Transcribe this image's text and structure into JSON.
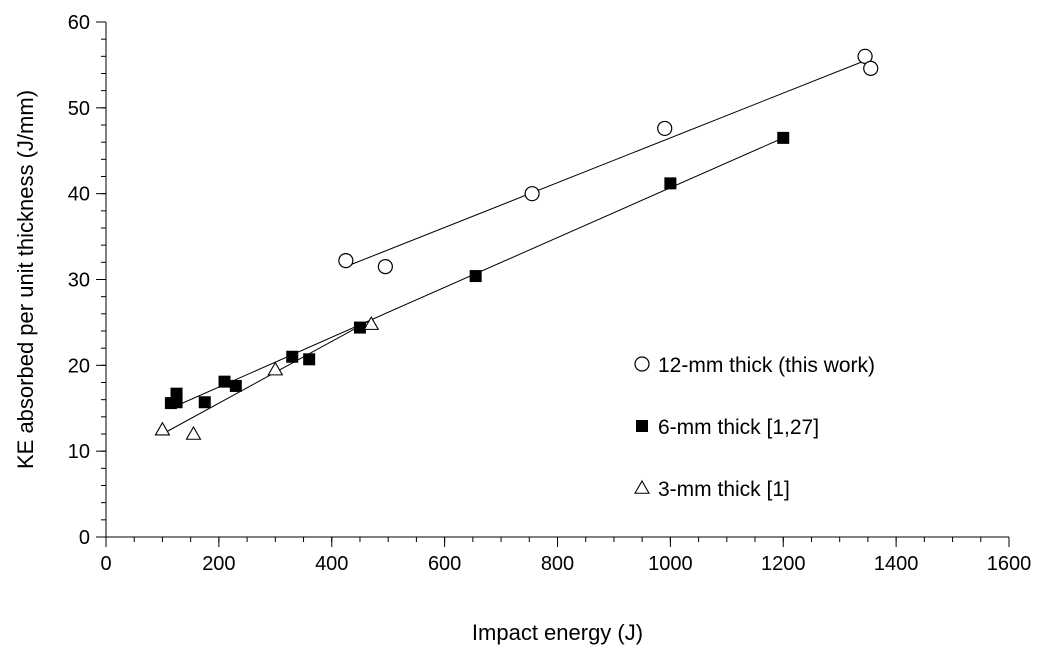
{
  "chart_data": {
    "type": "scatter",
    "xlabel": "Impact energy (J)",
    "ylabel": "KE absorbed per unit thickness (J/mm)",
    "xlim": [
      0,
      1600
    ],
    "ylim": [
      0,
      60
    ],
    "x_ticks": [
      "0",
      "200",
      "400",
      "600",
      "800",
      "1000",
      "1200",
      "1400",
      "1600"
    ],
    "y_ticks": [
      "0",
      "10",
      "20",
      "30",
      "40",
      "50",
      "60"
    ],
    "x_minor_step": 50,
    "y_minor_step": 2,
    "grid": false,
    "legend_position": "right",
    "series": [
      {
        "name": "12-mm thick (this work)",
        "marker": "circle-open",
        "color": "#000000",
        "points": [
          [
            425,
            32.2
          ],
          [
            495,
            31.5
          ],
          [
            755,
            40.0
          ],
          [
            990,
            47.6
          ],
          [
            1345,
            56.0
          ],
          [
            1355,
            54.6
          ]
        ],
        "fit_line": [
          [
            425,
            31.5
          ],
          [
            1345,
            55.5
          ]
        ]
      },
      {
        "name": "6-mm thick [1,27]",
        "marker": "square-filled",
        "color": "#000000",
        "points": [
          [
            115,
            15.6
          ],
          [
            125,
            16.7
          ],
          [
            125,
            15.7
          ],
          [
            175,
            15.7
          ],
          [
            210,
            18.1
          ],
          [
            230,
            17.6
          ],
          [
            330,
            21.0
          ],
          [
            360,
            20.7
          ],
          [
            450,
            24.4
          ],
          [
            655,
            30.4
          ],
          [
            1000,
            41.2
          ],
          [
            1200,
            46.5
          ]
        ],
        "fit_line": [
          [
            115,
            15.0
          ],
          [
            1200,
            46.5
          ]
        ]
      },
      {
        "name": "3-mm thick [1]",
        "marker": "triangle-open",
        "color": "#000000",
        "points": [
          [
            100,
            12.5
          ],
          [
            155,
            12.0
          ],
          [
            300,
            19.5
          ],
          [
            470,
            24.8
          ]
        ],
        "fit_line": [
          [
            100,
            12.0
          ],
          [
            470,
            25.3
          ]
        ]
      }
    ]
  }
}
